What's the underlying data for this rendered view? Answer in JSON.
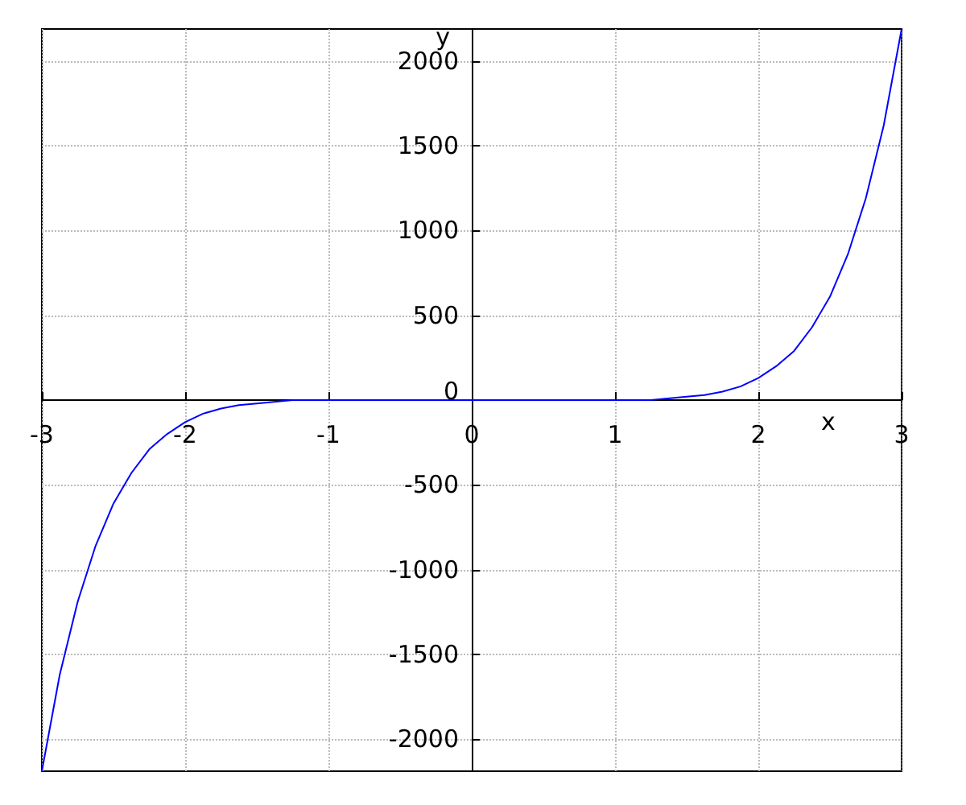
{
  "chart_data": {
    "type": "line",
    "xlabel": "x",
    "ylabel": "y",
    "series": [
      {
        "color": "#0000ff",
        "x": [
          -3,
          -2.875,
          -2.75,
          -2.625,
          -2.5,
          -2.375,
          -2.25,
          -2.125,
          -2,
          -1.875,
          -1.75,
          -1.625,
          -1.5,
          -1.25,
          -1,
          0,
          1,
          1.25,
          1.5,
          1.625,
          1.75,
          1.875,
          2,
          2.125,
          2.25,
          2.375,
          2.5,
          2.625,
          2.75,
          2.875,
          3
        ],
        "values": [
          -2190,
          -1620,
          -1190,
          -860,
          -610,
          -430,
          -290,
          -200,
          -130,
          -80,
          -50,
          -30,
          -20,
          0,
          0,
          0,
          0,
          0,
          20,
          30,
          50,
          80,
          130,
          200,
          290,
          430,
          610,
          860,
          1190,
          1620,
          2190
        ]
      }
    ],
    "xlim": [
      -3,
      3
    ],
    "ylim": [
      -2190,
      2190
    ],
    "xticks": [
      -3,
      -2,
      -1,
      0,
      1,
      2,
      3
    ],
    "yticks": [
      -2000,
      -1500,
      -1000,
      -500,
      0,
      500,
      1000,
      1500,
      2000
    ],
    "grid": true,
    "marker": "none",
    "line_style": "solid"
  }
}
